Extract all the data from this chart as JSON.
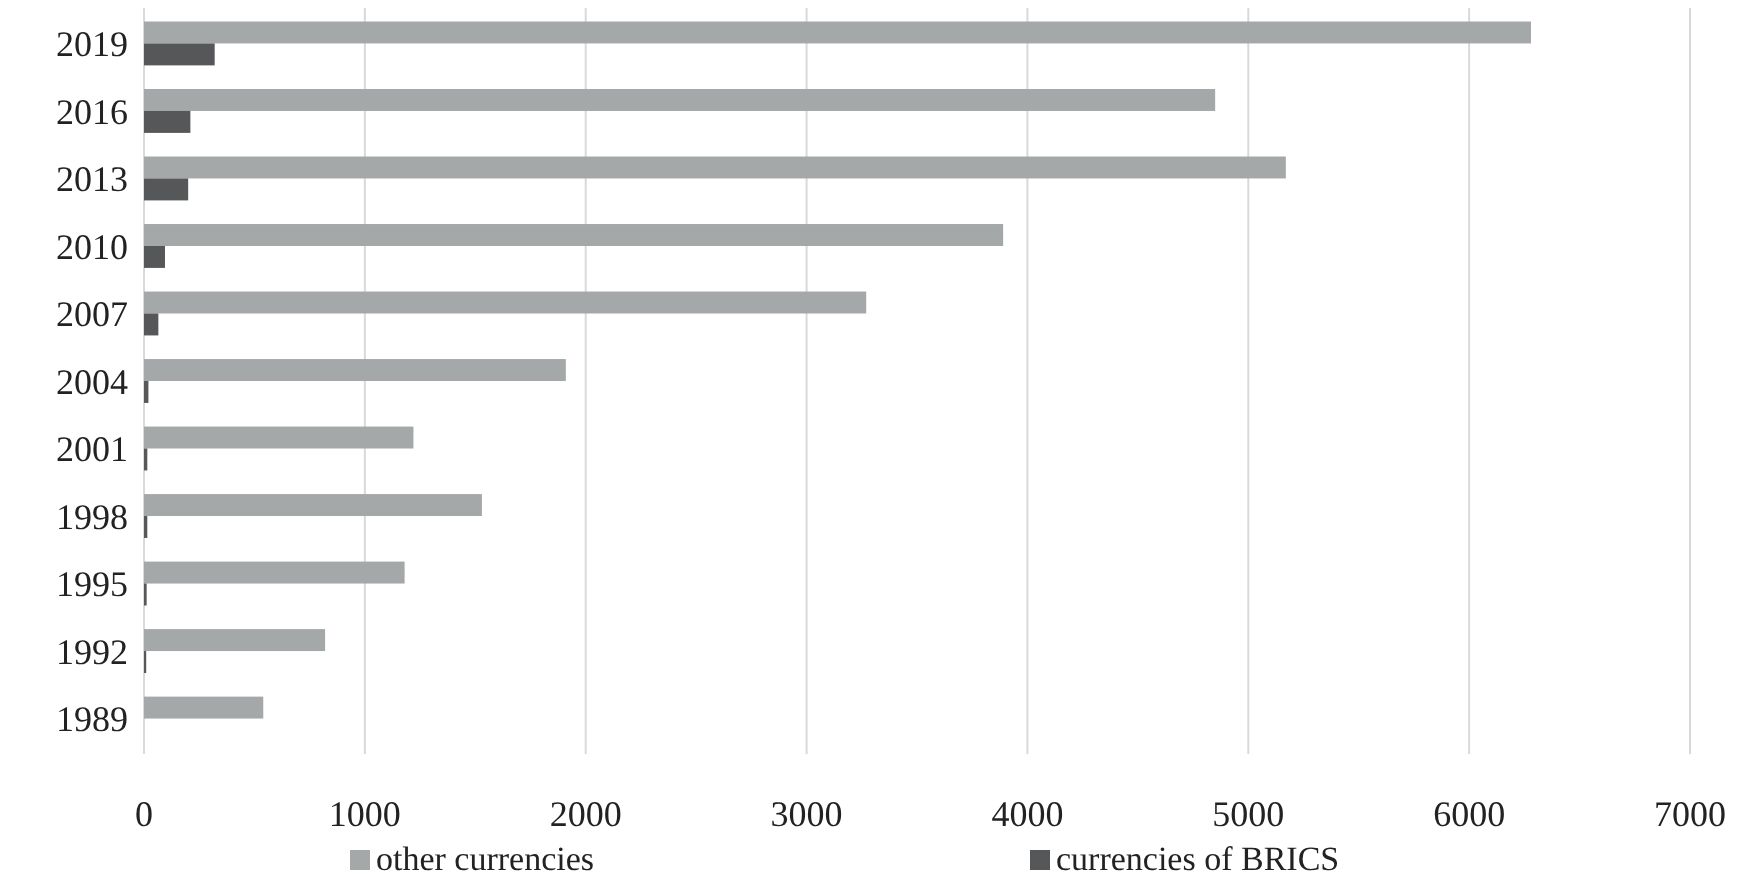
{
  "chart_data": {
    "type": "bar",
    "orientation": "horizontal",
    "categories": [
      "2019",
      "2016",
      "2013",
      "2010",
      "2007",
      "2004",
      "2001",
      "1998",
      "1995",
      "1992",
      "1989"
    ],
    "series": [
      {
        "name": "other currencies",
        "color": "#a5a8a8",
        "values": [
          6280,
          4850,
          5170,
          3890,
          3270,
          1910,
          1220,
          1530,
          1180,
          820,
          540
        ]
      },
      {
        "name": "currencies of BRICS",
        "color": "#555759",
        "values": [
          320,
          210,
          200,
          95,
          65,
          20,
          15,
          15,
          12,
          10,
          0
        ]
      }
    ],
    "xlim": [
      0,
      7000
    ],
    "xticks": [
      0,
      1000,
      2000,
      3000,
      4000,
      5000,
      6000,
      7000
    ],
    "grid": "x",
    "legend": "bottom"
  }
}
